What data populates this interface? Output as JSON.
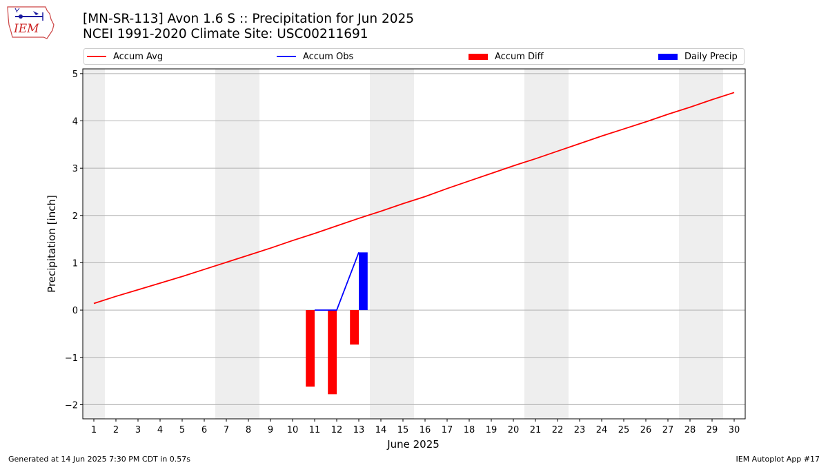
{
  "logo": {
    "icon": "iem-logo-icon",
    "text": "IEM"
  },
  "header": {
    "title": "[MN-SR-113] Avon 1.6 S :: Precipitation for Jun 2025",
    "subtitle": "NCEI 1991-2020 Climate Site: USC00211691"
  },
  "legend": [
    {
      "label": "Accum Avg",
      "kind": "line",
      "color": "#ff0000"
    },
    {
      "label": "Accum Obs",
      "kind": "line",
      "color": "#0000ff"
    },
    {
      "label": "Accum Diff",
      "kind": "box",
      "color": "#ff0000"
    },
    {
      "label": "Daily Precip",
      "kind": "box",
      "color": "#0000ff"
    }
  ],
  "chart_data": {
    "type": "line",
    "xlabel": "June 2025",
    "ylabel": "Precipitation [inch]",
    "xlim": [
      0.5,
      30.5
    ],
    "ylim": [
      -2.3,
      5.1
    ],
    "x_ticks": [
      1,
      2,
      3,
      4,
      5,
      6,
      7,
      8,
      9,
      10,
      11,
      12,
      13,
      14,
      15,
      16,
      17,
      18,
      19,
      20,
      21,
      22,
      23,
      24,
      25,
      26,
      27,
      28,
      29,
      30
    ],
    "y_ticks": [
      -2,
      -1,
      0,
      1,
      2,
      3,
      4,
      5
    ],
    "y_tick_labels": [
      "−2",
      "−1",
      "0",
      "1",
      "2",
      "3",
      "4",
      "5"
    ],
    "grid": "horizontal",
    "weekend_shading": [
      [
        0.5,
        1.5
      ],
      [
        6.5,
        8.5
      ],
      [
        13.5,
        15.5
      ],
      [
        20.5,
        22.5
      ],
      [
        27.5,
        29.5
      ]
    ],
    "weekend_color": "#eeeeee",
    "series": [
      {
        "name": "Accum Avg",
        "type": "line",
        "color": "#ff0000",
        "x": [
          1,
          2,
          3,
          4,
          5,
          6,
          7,
          8,
          9,
          10,
          11,
          12,
          13,
          14,
          15,
          16,
          17,
          18,
          19,
          20,
          21,
          22,
          23,
          24,
          25,
          26,
          27,
          28,
          29,
          30
        ],
        "values": [
          0.14,
          0.29,
          0.43,
          0.57,
          0.71,
          0.86,
          1.01,
          1.16,
          1.31,
          1.47,
          1.62,
          1.78,
          1.94,
          2.09,
          2.25,
          2.4,
          2.57,
          2.73,
          2.89,
          3.05,
          3.2,
          3.36,
          3.52,
          3.68,
          3.83,
          3.98,
          4.14,
          4.29,
          4.45,
          4.6
        ]
      },
      {
        "name": "Accum Obs",
        "type": "line",
        "color": "#0000ff",
        "x": [
          11,
          12,
          13
        ],
        "values": [
          0.0,
          0.0,
          1.22
        ]
      },
      {
        "name": "Accum Diff",
        "type": "bar",
        "color": "#ff0000",
        "x": [
          11,
          12,
          13
        ],
        "values": [
          -1.62,
          -1.78,
          -0.73
        ]
      },
      {
        "name": "Daily Precip",
        "type": "bar",
        "color": "#0000ff",
        "x": [
          11,
          12,
          13
        ],
        "values": [
          0.0,
          0.0,
          1.22
        ]
      }
    ]
  },
  "footer": {
    "left": "Generated at 14 Jun 2025 7:30 PM CDT in 0.57s",
    "right": "IEM Autoplot App #17"
  }
}
